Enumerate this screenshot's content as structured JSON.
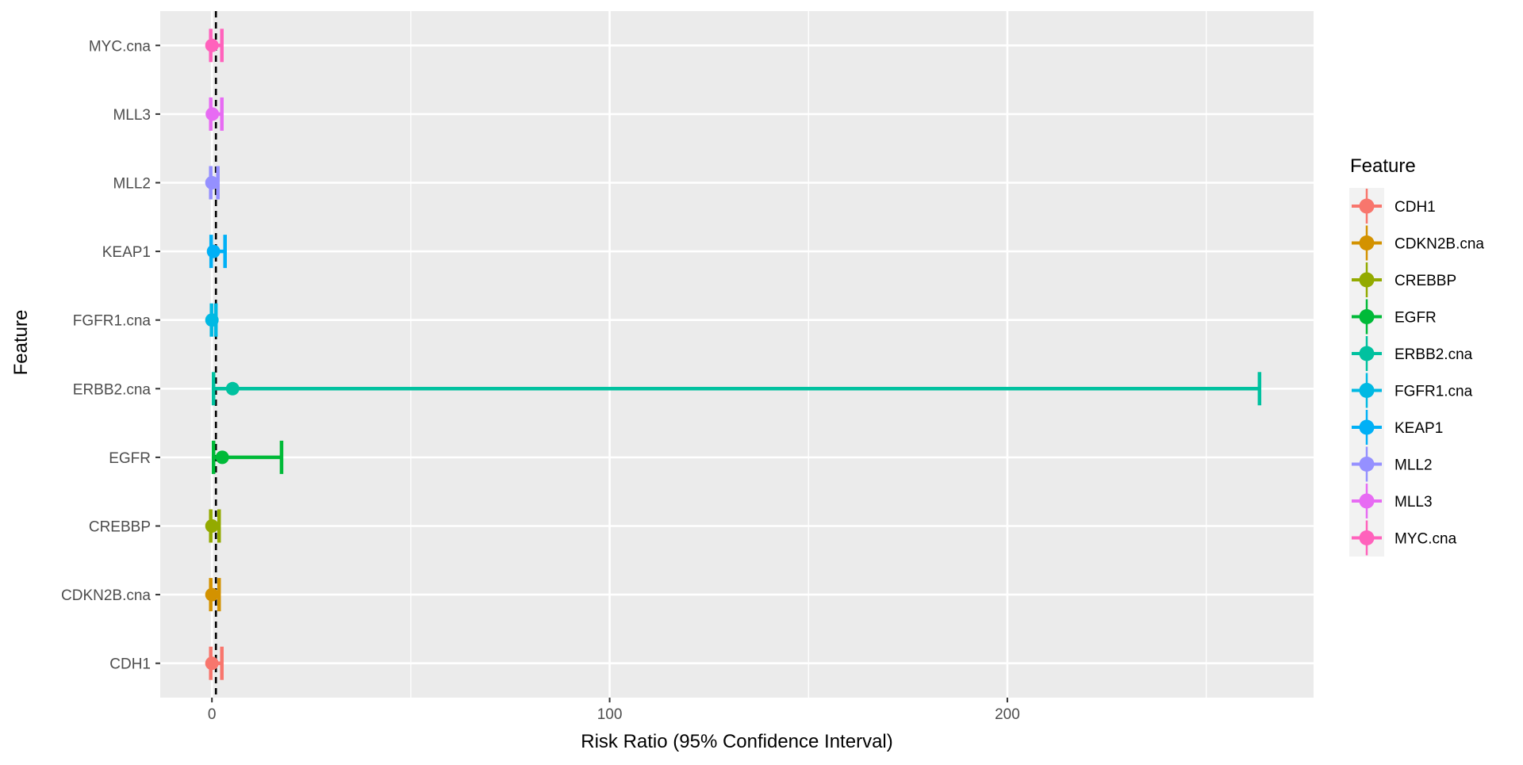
{
  "chart_data": {
    "type": "forest",
    "xlabel": "Risk Ratio (95% Confidence Interval)",
    "ylabel": "Feature",
    "xlim": [
      -13,
      277
    ],
    "x_ticks": [
      0,
      100,
      200
    ],
    "x_minor_ticks": [
      50,
      150,
      250
    ],
    "reference_line": 1,
    "grid": true,
    "legend": {
      "title": "Feature",
      "placement": "right",
      "entries": [
        "CDH1",
        "CDKN2B.cna",
        "CREBBP",
        "EGFR",
        "ERBB2.cna",
        "FGFR1.cna",
        "KEAP1",
        "MLL2",
        "MLL3",
        "MYC.cna"
      ]
    },
    "colors": {
      "CDH1": "#F8766D",
      "CDKN2B.cna": "#D39200",
      "CREBBP": "#93AA00",
      "EGFR": "#00BA38",
      "ERBB2.cna": "#00C19F",
      "FGFR1.cna": "#00B9E3",
      "KEAP1": "#00B0F6",
      "MLL2": "#9590FF",
      "MLL3": "#E76BF3",
      "MYC.cna": "#FF62BC"
    },
    "categories": [
      "CDH1",
      "CDKN2B.cna",
      "CREBBP",
      "EGFR",
      "ERBB2.cna",
      "FGFR1.cna",
      "KEAP1",
      "MLL2",
      "MLL3",
      "MYC.cna"
    ],
    "points": [
      {
        "feature": "CDH1",
        "estimate": 0.0,
        "lower": -0.3,
        "upper": 2.5
      },
      {
        "feature": "CDKN2B.cna",
        "estimate": 0.0,
        "lower": -0.3,
        "upper": 1.8
      },
      {
        "feature": "CREBBP",
        "estimate": 0.0,
        "lower": -0.3,
        "upper": 1.8
      },
      {
        "feature": "EGFR",
        "estimate": 2.6,
        "lower": 0.4,
        "upper": 17.5
      },
      {
        "feature": "ERBB2.cna",
        "estimate": 5.2,
        "lower": 0.4,
        "upper": 263.4
      },
      {
        "feature": "FGFR1.cna",
        "estimate": 0.0,
        "lower": -0.1,
        "upper": 1.0
      },
      {
        "feature": "KEAP1",
        "estimate": 0.4,
        "lower": -0.2,
        "upper": 3.3
      },
      {
        "feature": "MLL2",
        "estimate": 0.0,
        "lower": -0.3,
        "upper": 1.5
      },
      {
        "feature": "MLL3",
        "estimate": 0.1,
        "lower": -0.3,
        "upper": 2.5
      },
      {
        "feature": "MYC.cna",
        "estimate": 0.0,
        "lower": -0.3,
        "upper": 2.5
      }
    ]
  }
}
